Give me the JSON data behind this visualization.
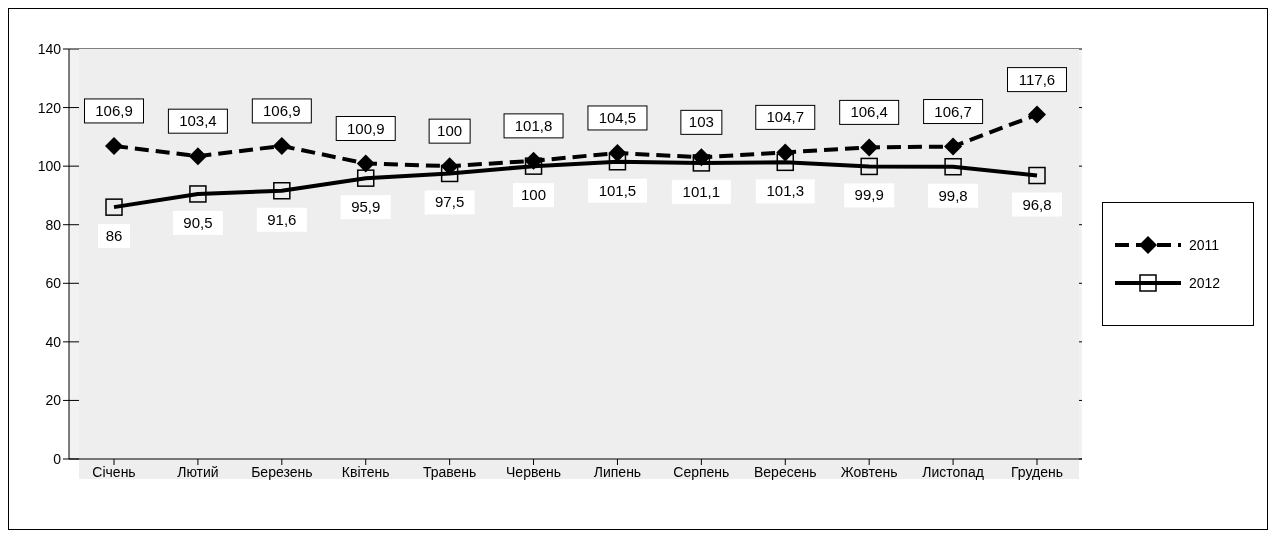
{
  "chart_data": {
    "type": "line",
    "categories": [
      "Січень",
      "Лютий",
      "Березень",
      "Квітень",
      "Травень",
      "Червень",
      "Липень",
      "Серпень",
      "Вересень",
      "Жовтень",
      "Листопад",
      "Грудень"
    ],
    "series": [
      {
        "name": "2011",
        "color": "#000000",
        "marker": "diamond",
        "line_style": "dashed",
        "values": [
          106.9,
          103.4,
          106.9,
          100.9,
          100,
          101.8,
          104.5,
          103,
          104.7,
          106.4,
          106.7,
          117.6
        ],
        "value_labels": [
          "106,9",
          "103,4",
          "106,9",
          "100,9",
          "100",
          "101,8",
          "104,5",
          "103",
          "104,7",
          "106,4",
          "106,7",
          "117,6"
        ]
      },
      {
        "name": "2012",
        "color": "#000000",
        "marker": "square",
        "line_style": "solid",
        "values": [
          86,
          90.5,
          91.6,
          95.9,
          97.5,
          100,
          101.5,
          101.1,
          101.3,
          99.9,
          99.8,
          96.8
        ],
        "value_labels": [
          "86",
          "90,5",
          "91,6",
          "95,9",
          "97,5",
          "100",
          "101,5",
          "101,1",
          "101,3",
          "99,9",
          "99,8",
          "96,8"
        ]
      }
    ],
    "ylim": [
      0,
      140
    ],
    "yticks": [
      0,
      20,
      40,
      60,
      80,
      100,
      120,
      140
    ],
    "grid": "y",
    "legend": "right"
  }
}
